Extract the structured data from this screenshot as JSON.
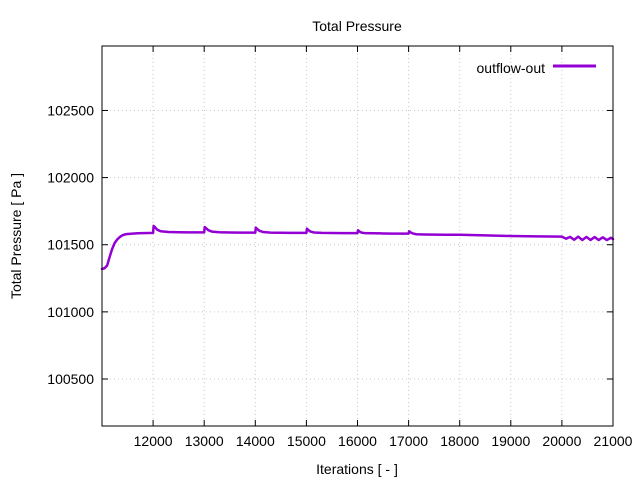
{
  "chart_data": {
    "type": "line",
    "title": "Total Pressure",
    "xlabel": "Iterations [ - ]",
    "ylabel": "Total Pressure [ Pa ]",
    "xlim": [
      11000,
      21000
    ],
    "ylim": [
      100150,
      102980
    ],
    "x_ticks": [
      12000,
      13000,
      14000,
      15000,
      16000,
      17000,
      18000,
      19000,
      20000,
      21000
    ],
    "y_ticks": [
      100500,
      101000,
      101500,
      102000,
      102500
    ],
    "grid": true,
    "legend_position": "top-right",
    "colors": {
      "series": "#9400d3"
    },
    "series": [
      {
        "name": "outflow-out",
        "x": [
          11000,
          11050,
          11100,
          11150,
          11200,
          11250,
          11300,
          11350,
          11400,
          11450,
          11500,
          11600,
          11700,
          11800,
          11900,
          12000,
          12010,
          12040,
          12080,
          12150,
          12300,
          12500,
          12700,
          13000,
          13010,
          13040,
          13080,
          13150,
          13300,
          13500,
          13700,
          14000,
          14010,
          14040,
          14080,
          14150,
          14300,
          14500,
          14700,
          15000,
          15010,
          15040,
          15080,
          15150,
          15300,
          15500,
          15700,
          16000,
          16010,
          16040,
          16080,
          16150,
          16300,
          16500,
          16700,
          17000,
          17010,
          17040,
          17080,
          17150,
          17300,
          17500,
          17700,
          18000,
          18500,
          19000,
          19500,
          20000,
          20080,
          20160,
          20240,
          20320,
          20400,
          20480,
          20560,
          20640,
          20720,
          20800,
          20880,
          20960,
          21000
        ],
        "values": [
          101320,
          101325,
          101345,
          101410,
          101470,
          101515,
          101540,
          101558,
          101570,
          101577,
          101580,
          101583,
          101585,
          101586,
          101587,
          101588,
          101640,
          101630,
          101612,
          101600,
          101595,
          101593,
          101592,
          101592,
          101632,
          101622,
          101608,
          101598,
          101593,
          101591,
          101590,
          101590,
          101627,
          101617,
          101604,
          101595,
          101590,
          101589,
          101588,
          101588,
          101620,
          101609,
          101598,
          101591,
          101588,
          101587,
          101586,
          101586,
          101608,
          101598,
          101590,
          101586,
          101585,
          101584,
          101583,
          101583,
          101600,
          101592,
          101584,
          101578,
          101576,
          101575,
          101574,
          101574,
          101570,
          101565,
          101562,
          101560,
          101545,
          101558,
          101537,
          101560,
          101535,
          101558,
          101535,
          101557,
          101535,
          101555,
          101535,
          101552,
          101542
        ]
      }
    ]
  }
}
